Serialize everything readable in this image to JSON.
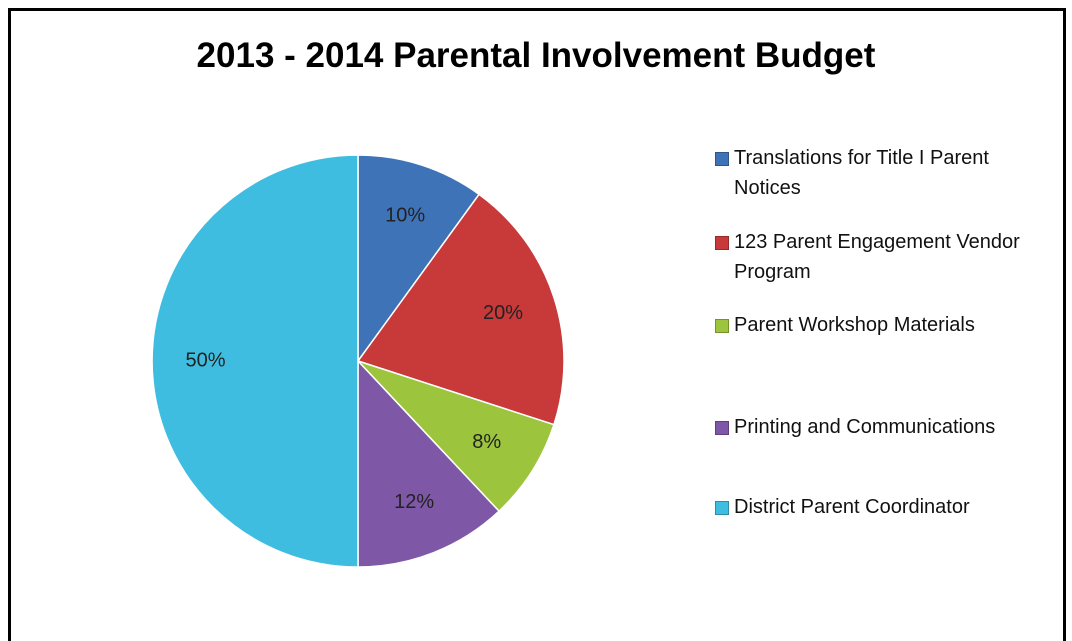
{
  "chart_data": {
    "type": "pie",
    "title": "2013 - 2014 Parental Involvement Budget",
    "categories": [
      "Translations for Title I Parent Notices",
      "123 Parent Engagement Vendor Program",
      "Parent Workshop Materials",
      "Printing and Communications",
      "District Parent Coordinator"
    ],
    "values": [
      10,
      20,
      8,
      12,
      50
    ],
    "value_labels": [
      "10%",
      "20%",
      "8%",
      "12%",
      "50%"
    ],
    "colors": [
      "#3f73b8",
      "#c8393a",
      "#9cc43d",
      "#7e57a6",
      "#3fbde0"
    ],
    "legend": "right"
  }
}
